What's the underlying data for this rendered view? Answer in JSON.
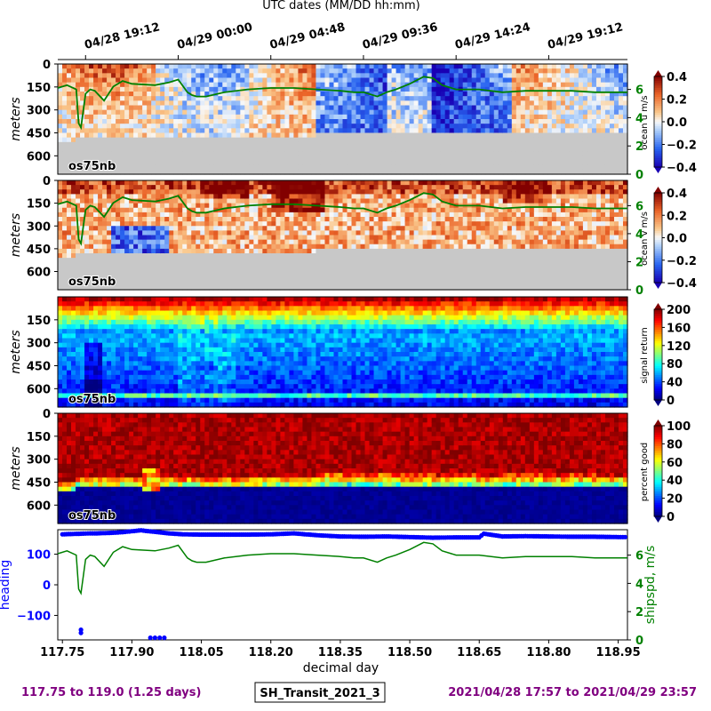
{
  "header": {
    "top_axis_label": "UTC dates (MM/DD hh:mm)",
    "top_ticks": [
      "04/28 19:12",
      "04/29 00:00",
      "04/29 04:48",
      "04/29 09:36",
      "04/29 14:24",
      "04/29 19:12"
    ]
  },
  "footer": {
    "left": "117.75 to 119.0 (1.25 days)",
    "center": "SH_Transit_2021_3",
    "right": "2021/04/28 17:57 to 2021/04/29 23:57",
    "accent_color": "#800080"
  },
  "chart_data": [
    {
      "type": "heatmap",
      "panel": "ocean-u",
      "instrument": "os75nb",
      "ylabel": "meters",
      "yticks": [
        0,
        150,
        300,
        450,
        600
      ],
      "ylim": [
        0,
        720
      ],
      "colorbar": {
        "label": "ocean u m/s",
        "ticks": [
          "0.4",
          "0.2",
          "0.0",
          "−0.2",
          "−0.4"
        ],
        "range": [
          -0.4,
          0.4
        ],
        "colormap": "coolwarm"
      },
      "right_axis": {
        "ticks": [
          "6",
          "4",
          "2",
          "0"
        ],
        "color": "#008000"
      },
      "overlay_series": "ship speed (m/s)"
    },
    {
      "type": "heatmap",
      "panel": "ocean-v",
      "instrument": "os75nb",
      "ylabel": "meters",
      "yticks": [
        0,
        150,
        300,
        450,
        600
      ],
      "ylim": [
        0,
        720
      ],
      "colorbar": {
        "label": "ocean v m/s",
        "ticks": [
          "0.4",
          "0.2",
          "0.0",
          "−0.2",
          "−0.4"
        ],
        "range": [
          -0.4,
          0.4
        ],
        "colormap": "coolwarm"
      },
      "right_axis": {
        "ticks": [
          "6",
          "4",
          "2",
          "0"
        ],
        "color": "#008000"
      },
      "overlay_series": "ship speed (m/s)"
    },
    {
      "type": "heatmap",
      "panel": "signal-return",
      "instrument": "os75nb",
      "ylabel": "meters",
      "yticks": [
        150,
        300,
        450,
        600
      ],
      "ylim": [
        0,
        720
      ],
      "colorbar": {
        "label": "signal return",
        "ticks": [
          "200",
          "160",
          "120",
          "80",
          "40",
          "0"
        ],
        "range": [
          0,
          200
        ],
        "colormap": "jet"
      }
    },
    {
      "type": "heatmap",
      "panel": "percent-good",
      "instrument": "os75nb",
      "ylabel": "meters",
      "yticks": [
        0,
        150,
        300,
        450,
        600
      ],
      "ylim": [
        0,
        720
      ],
      "colorbar": {
        "label": "percent good",
        "ticks": [
          "100",
          "80",
          "60",
          "40",
          "20",
          "0"
        ],
        "range": [
          0,
          100
        ],
        "colormap": "jet"
      }
    },
    {
      "type": "scatter",
      "panel": "heading-shipspeed",
      "xlabel": "decimal day",
      "xticks": [
        "117.75",
        "117.90",
        "118.05",
        "118.20",
        "118.35",
        "118.50",
        "118.65",
        "118.80",
        "118.95"
      ],
      "xlim": [
        117.74,
        118.97
      ],
      "left_axis": {
        "label": "heading",
        "ticks": [
          "100",
          "0",
          "−100"
        ],
        "range": [
          -180,
          180
        ],
        "color": "#0000ff"
      },
      "right_axis": {
        "label": "shipspd, m/s",
        "ticks": [
          "6",
          "4",
          "2",
          "0"
        ],
        "range": [
          0,
          7.8
        ],
        "color": "#008000"
      },
      "series": [
        {
          "name": "heading",
          "color": "#0000ff",
          "x": [
            117.75,
            117.79,
            117.81,
            117.82,
            117.86,
            117.88,
            117.9,
            117.92,
            117.93,
            117.95,
            117.98,
            118.01,
            118.05,
            118.1,
            118.15,
            118.2,
            118.25,
            118.3,
            118.35,
            118.4,
            118.45,
            118.5,
            118.55,
            118.6,
            118.65,
            118.66,
            118.7,
            118.75,
            118.8,
            118.85,
            118.9,
            118.95,
            118.97
          ],
          "y": [
            165,
            167,
            168,
            168,
            170,
            172,
            175,
            178,
            176,
            173,
            168,
            165,
            164,
            164,
            164,
            165,
            168,
            162,
            158,
            157,
            158,
            156,
            154,
            155,
            155,
            167,
            158,
            159,
            158,
            157,
            157,
            156,
            156
          ],
          "outliers_x": [
            117.79,
            117.79,
            117.94,
            117.95,
            117.96,
            117.97
          ],
          "outliers_y": [
            -147,
            -157,
            -173,
            -173,
            -173,
            -173
          ]
        },
        {
          "name": "ship speed",
          "color": "#008000",
          "x": [
            117.74,
            117.76,
            117.78,
            117.785,
            117.79,
            117.795,
            117.8,
            117.81,
            117.82,
            117.84,
            117.86,
            117.88,
            117.9,
            117.95,
            117.98,
            118.0,
            118.02,
            118.03,
            118.04,
            118.06,
            118.1,
            118.15,
            118.2,
            118.25,
            118.3,
            118.35,
            118.38,
            118.4,
            118.43,
            118.45,
            118.47,
            118.5,
            118.53,
            118.55,
            118.57,
            118.6,
            118.65,
            118.7,
            118.75,
            118.8,
            118.85,
            118.9,
            118.97
          ],
          "y": [
            6.1,
            6.3,
            6.0,
            3.6,
            3.3,
            4.5,
            5.7,
            6.0,
            5.9,
            5.2,
            6.2,
            6.6,
            6.4,
            6.3,
            6.5,
            6.7,
            5.8,
            5.6,
            5.5,
            5.5,
            5.8,
            6.0,
            6.1,
            6.1,
            6.0,
            5.9,
            5.8,
            5.8,
            5.5,
            5.8,
            6.0,
            6.4,
            6.9,
            6.8,
            6.3,
            6.0,
            6.0,
            5.8,
            5.9,
            5.9,
            5.9,
            5.8,
            5.8
          ]
        }
      ]
    }
  ]
}
